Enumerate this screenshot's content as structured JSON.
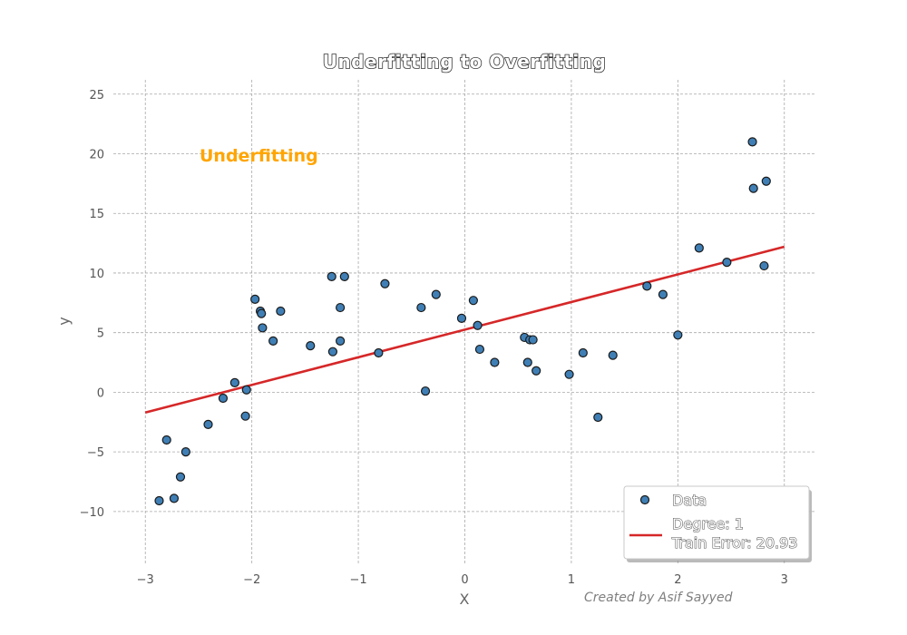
{
  "chart_data": {
    "type": "scatter",
    "title": "Underfitting to Overfitting",
    "xlabel": "X",
    "ylabel": "y",
    "xlim": [
      -3.3,
      3.3
    ],
    "ylim": [
      -14.5,
      26.2
    ],
    "xticks": [
      -3,
      -2,
      -1,
      0,
      1,
      2,
      3
    ],
    "yticks": [
      -10,
      -5,
      0,
      5,
      10,
      15,
      20,
      25
    ],
    "xtick_labels": [
      "−3",
      "−2",
      "−1",
      "0",
      "1",
      "2",
      "3"
    ],
    "ytick_labels": [
      "−10",
      "−5",
      "0",
      "5",
      "10",
      "15",
      "20",
      "25"
    ],
    "grid": true,
    "legend_position": "bottom-right",
    "annotation": "Underfitting",
    "credit": "Created by Asif Sayyed",
    "series": [
      {
        "name": "Data",
        "kind": "scatter",
        "color": "#3f7fb5",
        "points": [
          [
            -2.87,
            -9.1
          ],
          [
            -2.8,
            -4.0
          ],
          [
            -2.73,
            -8.9
          ],
          [
            -2.67,
            -7.1
          ],
          [
            -2.62,
            -5.0
          ],
          [
            -2.41,
            -2.7
          ],
          [
            -2.27,
            -0.5
          ],
          [
            -2.16,
            0.8
          ],
          [
            -2.06,
            -2.0
          ],
          [
            -2.05,
            0.2
          ],
          [
            -1.97,
            7.8
          ],
          [
            -1.92,
            6.8
          ],
          [
            -1.91,
            6.6
          ],
          [
            -1.9,
            5.4
          ],
          [
            -1.8,
            4.3
          ],
          [
            -1.73,
            6.8
          ],
          [
            -1.45,
            3.9
          ],
          [
            -1.25,
            9.7
          ],
          [
            -1.24,
            3.4
          ],
          [
            -1.17,
            7.1
          ],
          [
            -1.17,
            4.3
          ],
          [
            -1.13,
            9.7
          ],
          [
            -0.81,
            3.3
          ],
          [
            -0.75,
            9.1
          ],
          [
            -0.41,
            7.1
          ],
          [
            -0.37,
            0.1
          ],
          [
            -0.27,
            8.2
          ],
          [
            -0.03,
            6.2
          ],
          [
            0.08,
            7.7
          ],
          [
            0.12,
            5.6
          ],
          [
            0.14,
            3.6
          ],
          [
            0.28,
            2.5
          ],
          [
            0.56,
            4.6
          ],
          [
            0.59,
            2.5
          ],
          [
            0.61,
            4.4
          ],
          [
            0.64,
            4.4
          ],
          [
            0.67,
            1.8
          ],
          [
            0.98,
            1.5
          ],
          [
            1.11,
            3.3
          ],
          [
            1.25,
            -2.1
          ],
          [
            1.39,
            3.1
          ],
          [
            1.71,
            8.9
          ],
          [
            1.86,
            8.2
          ],
          [
            2.0,
            4.8
          ],
          [
            2.2,
            12.1
          ],
          [
            2.46,
            10.9
          ],
          [
            2.7,
            21.0
          ],
          [
            2.71,
            17.1
          ],
          [
            2.81,
            10.6
          ],
          [
            2.83,
            17.7
          ]
        ]
      },
      {
        "name": "Degree: 1\nTrain Error: 20.93",
        "kind": "line",
        "color": "#d62728",
        "x": [
          -3,
          3
        ],
        "y": [
          -1.7,
          12.2
        ]
      }
    ]
  },
  "legend": {
    "data_label": "Data",
    "line_label_1": "Degree: 1",
    "line_label_2": "Train Error: 20.93"
  }
}
